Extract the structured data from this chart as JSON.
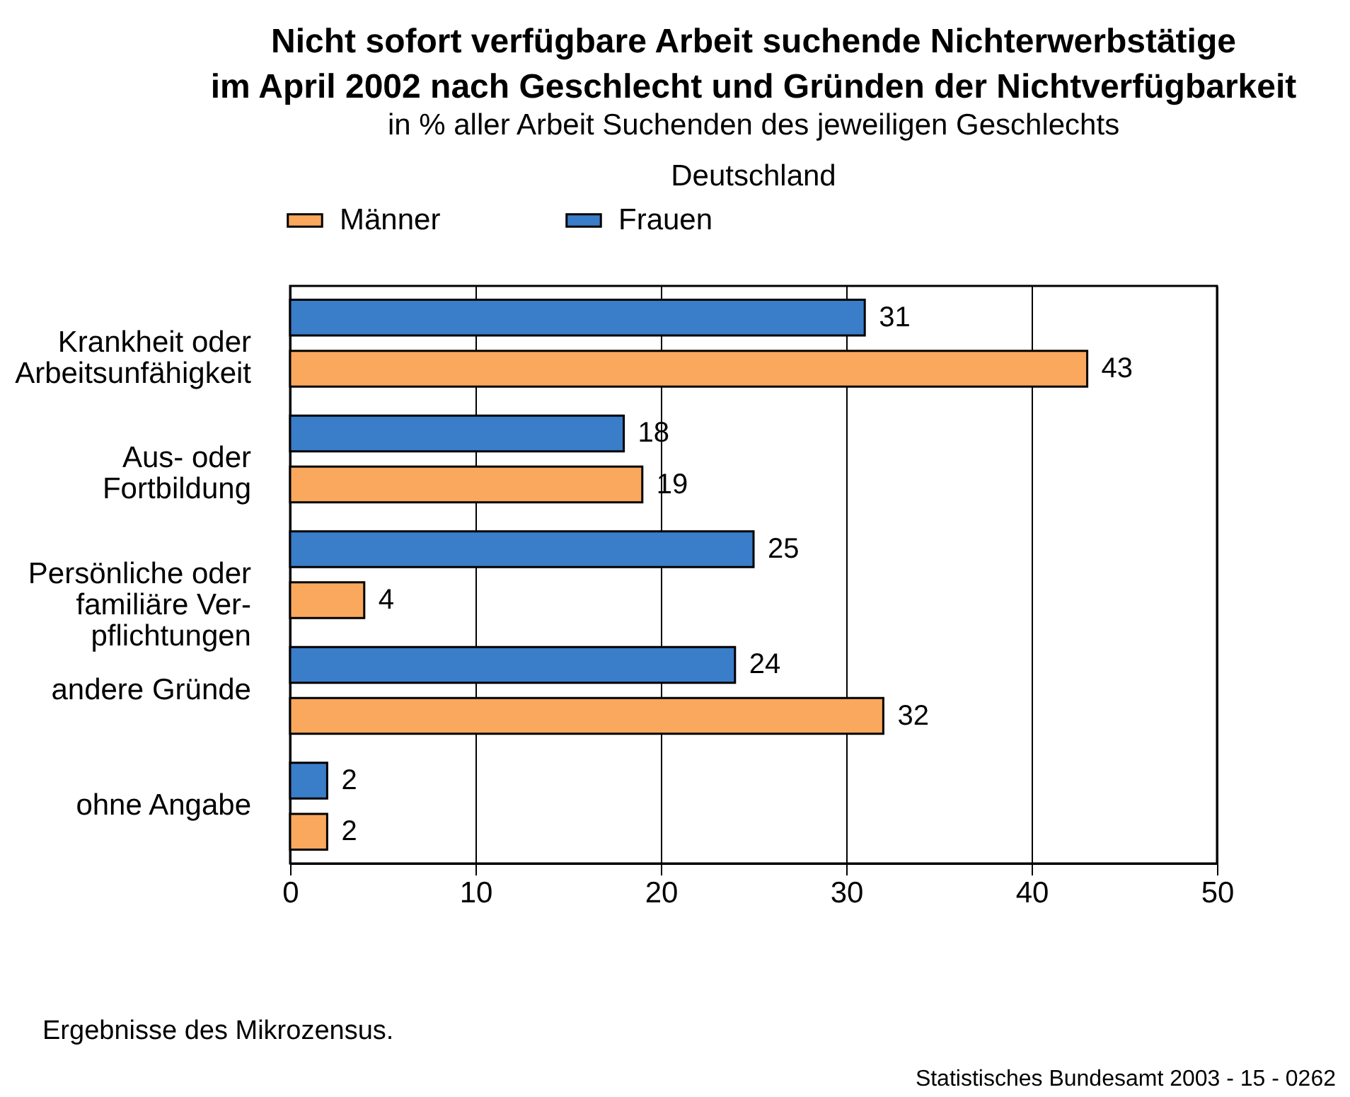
{
  "chart_data": {
    "type": "bar",
    "orientation": "horizontal",
    "title": "Nicht sofort verfügbare Arbeit suchende Nichterwerbstätige\nim April 2002 nach Geschlecht und Gründen der Nichtverfügbarkeit",
    "subtitle": "in % aller Arbeit Suchenden des jeweiligen Geschlechts\nDeutschland",
    "categories": [
      "Krankheit oder\nArbeitsunfähigkeit",
      "Aus- oder\nFortbildung",
      "Persönliche oder\nfamiliäre Ver-\npflichtungen",
      "andere Gründe",
      "ohne Angabe"
    ],
    "series": [
      {
        "name": "Männer",
        "color": "#f9a85e",
        "values": [
          43,
          19,
          4,
          32,
          2
        ]
      },
      {
        "name": "Frauen",
        "color": "#3a7dc9",
        "values": [
          31,
          18,
          25,
          24,
          2
        ]
      }
    ],
    "xlim": [
      0,
      50
    ],
    "xticks": [
      0,
      10,
      20,
      30,
      40,
      50
    ],
    "grid": "x",
    "legend": "top",
    "data_labels": true,
    "annotations": [
      "Ergebnisse des Mikrozensus.",
      "Statistisches Bundesamt 2003 - 15 - 0262"
    ]
  }
}
